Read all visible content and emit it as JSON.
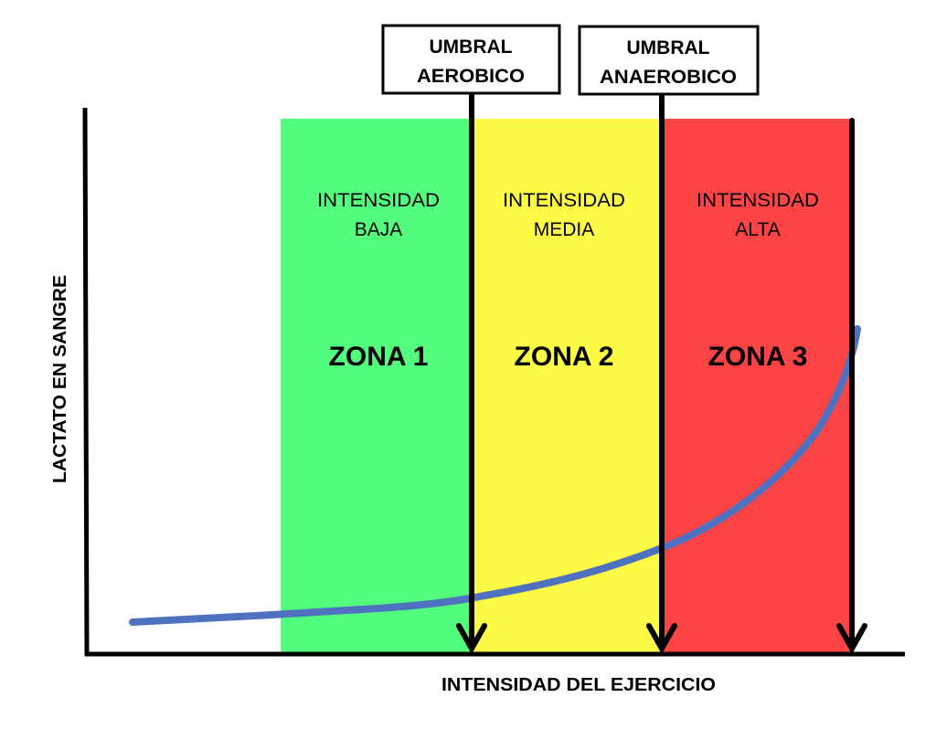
{
  "axes": {
    "y_label": "LACTATO EN SANGRE",
    "x_label": "INTENSIDAD DEL EJERCICIO"
  },
  "thresholds": [
    {
      "line1": "UMBRAL",
      "line2": "AEROBICO"
    },
    {
      "line1": "UMBRAL",
      "line2": "ANAEROBICO"
    }
  ],
  "zones": [
    {
      "line1": "INTENSIDAD",
      "line2": "BAJA",
      "name": "ZONA 1",
      "color": "#52fd7d"
    },
    {
      "line1": "INTENSIDAD",
      "line2": "MEDIA",
      "name": "ZONA 2",
      "color": "#fdfb45"
    },
    {
      "line1": "INTENSIDAD",
      "line2": "ALTA",
      "name": "ZONA 3",
      "color": "#fd4444"
    }
  ],
  "curve_color": "#4f72c0"
}
